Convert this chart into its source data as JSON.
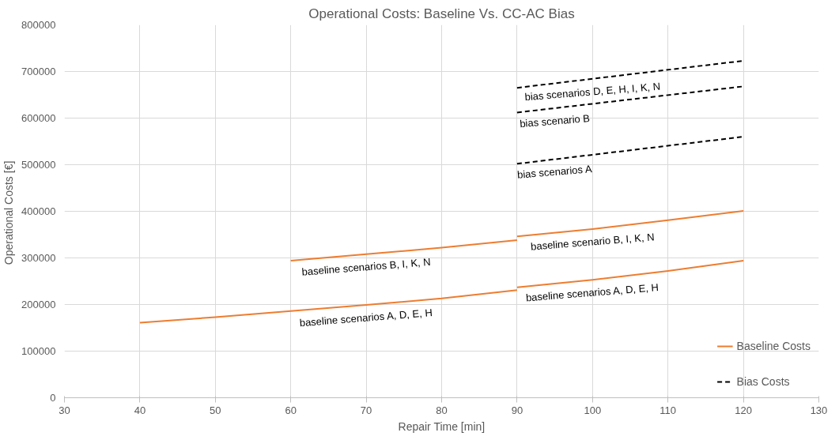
{
  "chart_data": {
    "type": "line",
    "title": "Operational Costs: Baseline Vs. CC-AC Bias",
    "xlabel": "Repair Time [min]",
    "ylabel": "Operational  Costs [€]",
    "xlim": [
      30,
      130
    ],
    "xticks": [
      30,
      40,
      50,
      60,
      70,
      80,
      90,
      100,
      110,
      120,
      130
    ],
    "ylim": [
      0,
      800000
    ],
    "yticks": [
      0,
      100000,
      200000,
      300000,
      400000,
      500000,
      600000,
      700000,
      800000
    ],
    "grid": true,
    "legend": "bottom right",
    "marker": "none",
    "series": [
      {
        "name": "Baseline Costs",
        "color": "#ed7d31",
        "line_style": "solid",
        "x": [
          40,
          50,
          60,
          70,
          80,
          90
        ],
        "values": [
          161000,
          173000,
          186000,
          199000,
          213000,
          231000
        ]
      },
      {
        "color": "#ed7d31",
        "line_style": "solid",
        "x": [
          90,
          100,
          110,
          120
        ],
        "values": [
          237000,
          253000,
          272000,
          294000
        ]
      },
      {
        "color": "#ed7d31",
        "line_style": "solid",
        "x": [
          60,
          70,
          80,
          90
        ],
        "values": [
          294000,
          308000,
          322000,
          338000
        ]
      },
      {
        "color": "#ed7d31",
        "line_style": "solid",
        "x": [
          90,
          100,
          110,
          120
        ],
        "values": [
          346000,
          362000,
          381000,
          401000
        ]
      },
      {
        "name": "Bias Costs",
        "color": "#000000",
        "line_style": "dashed",
        "x": [
          90,
          120
        ],
        "values": [
          502000,
          560000
        ]
      },
      {
        "color": "#000000",
        "line_style": "dashed",
        "x": [
          90,
          120
        ],
        "values": [
          612000,
          668000
        ]
      },
      {
        "color": "#000000",
        "line_style": "dashed",
        "x": [
          90,
          120
        ],
        "values": [
          665000,
          723000
        ]
      }
    ],
    "annotations": [
      {
        "text": "bias scenarios D, E, H, I, K, N",
        "x": 100,
        "y": 684000
      },
      {
        "text": "bias scenario B",
        "x": 95,
        "y": 621000
      },
      {
        "text": "bias scenarios A",
        "x": 95,
        "y": 512000
      },
      {
        "text": "baseline scenario B, I, K, N",
        "x": 100,
        "y": 362000
      },
      {
        "text": "baseline scenarios B, I, K, N",
        "x": 70,
        "y": 308000
      },
      {
        "text": "baseline scenarios A, D, E, H",
        "x": 100,
        "y": 253000
      },
      {
        "text": "baseline scenarios A, D, E, H",
        "x": 70,
        "y": 199000
      }
    ]
  }
}
